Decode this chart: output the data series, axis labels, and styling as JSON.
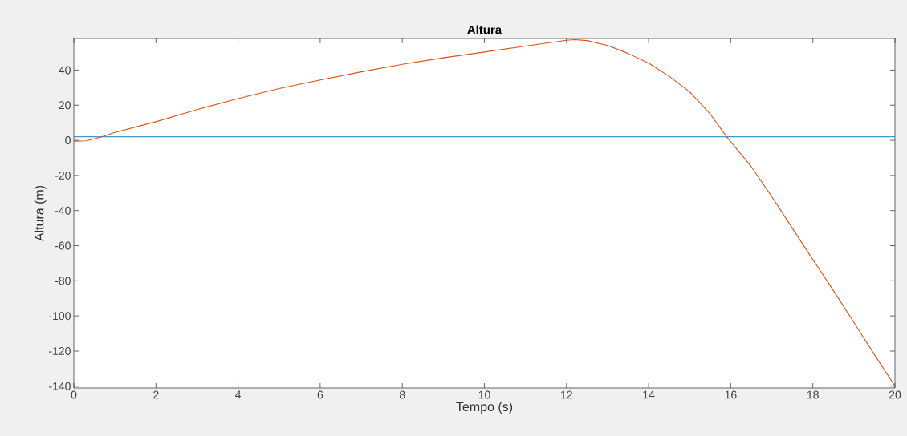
{
  "chart_data": {
    "type": "line",
    "title": "Altura",
    "xlabel": "Tempo (s)",
    "ylabel": "Altura (m)",
    "series": [
      {
        "color": "#0072bd",
        "x": [
          0,
          20
        ],
        "values": [
          2,
          2
        ]
      },
      {
        "color": "#d95319",
        "x": [
          0,
          0.3,
          0.68,
          1,
          2,
          3,
          4,
          5,
          6,
          7,
          8,
          9,
          10,
          11,
          12,
          12.2,
          12.5,
          13,
          13.5,
          14,
          14.5,
          15,
          15.5,
          15.9,
          16.5,
          17,
          17.5,
          18,
          18.5,
          19,
          19.5,
          20
        ],
        "values": [
          -0.5,
          -0.3,
          2,
          4.5,
          10.6,
          17.5,
          23.8,
          29.5,
          34.4,
          39,
          43.3,
          47,
          50.3,
          53.7,
          57,
          57.3,
          56.8,
          54,
          49.5,
          44,
          36.5,
          27.6,
          15,
          2,
          -15,
          -32,
          -50,
          -67.9,
          -85.5,
          -103.7,
          -122,
          -140
        ]
      }
    ],
    "xlim": [
      0,
      20
    ],
    "ylim": [
      -141,
      58
    ],
    "xticks": [
      0,
      2,
      4,
      6,
      8,
      10,
      12,
      14,
      16,
      18,
      20
    ],
    "yticks": [
      -140,
      -120,
      -100,
      -80,
      -60,
      -40,
      -20,
      0,
      20,
      40
    ],
    "grid": false,
    "line_style": "solid",
    "marker": "none"
  }
}
